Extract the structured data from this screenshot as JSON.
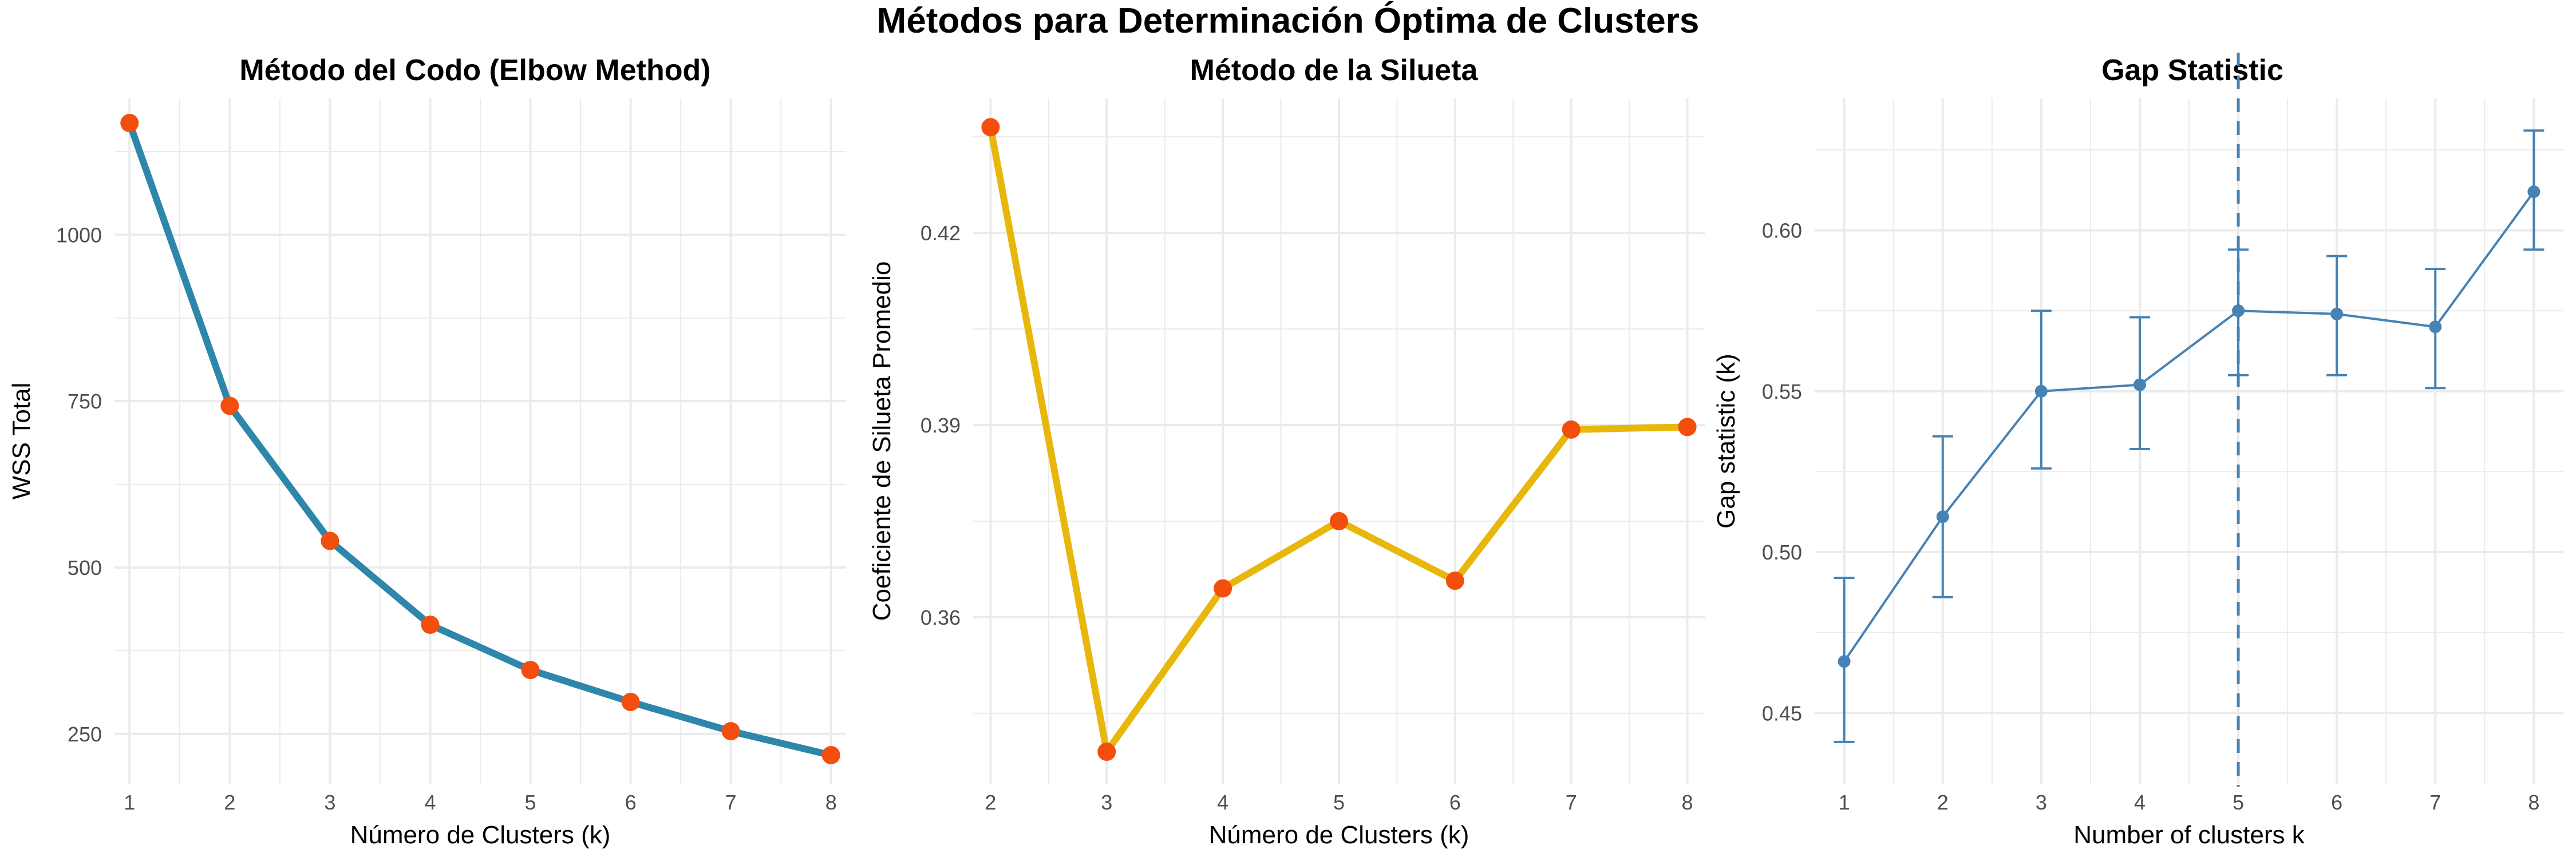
{
  "title": "Métodos para Determinación Óptima de Clusters",
  "colors": {
    "elbow_line": "#2E86AB",
    "point": "#F24E0E",
    "silhouette_line": "#E8B70C",
    "gap": "#4682B4",
    "grid": "#EBEBEB",
    "text": "#4D4D4D"
  },
  "chart_data": [
    {
      "type": "line",
      "title": "Método del Codo (Elbow Method)",
      "xlabel": "Número de Clusters (k)",
      "ylabel": "WSS Total",
      "x": [
        1,
        2,
        3,
        4,
        5,
        6,
        7,
        8
      ],
      "series": [
        {
          "values": [
            1168,
            743,
            540,
            414,
            346,
            298,
            254,
            218
          ]
        }
      ],
      "xlim": [
        0.85,
        8.15
      ],
      "ylim": [
        175,
        1205
      ],
      "xticks": [
        1,
        2,
        3,
        4,
        5,
        6,
        7,
        8
      ],
      "yticks": [
        250,
        500,
        750,
        1000
      ],
      "yticklabels": [
        "250",
        "500",
        "750",
        "1000"
      ],
      "grid": true,
      "legend": "none"
    },
    {
      "type": "line",
      "title": "Método de la Silueta",
      "xlabel": "Número de Clusters (k)",
      "ylabel": "Coeficiente de Silueta Promedio",
      "x": [
        2,
        3,
        4,
        5,
        6,
        7,
        8
      ],
      "series": [
        {
          "values": [
            0.4365,
            0.339,
            0.3645,
            0.375,
            0.3657,
            0.3893,
            0.3897
          ]
        }
      ],
      "xlim": [
        1.85,
        8.15
      ],
      "ylim": [
        0.334,
        0.441
      ],
      "xticks": [
        2,
        3,
        4,
        5,
        6,
        7,
        8
      ],
      "yticks": [
        0.36,
        0.39,
        0.42
      ],
      "yticklabels": [
        "0.36",
        "0.39",
        "0.42"
      ],
      "grid": true,
      "legend": "none"
    },
    {
      "type": "line",
      "title": "Gap Statistic",
      "xlabel": "Number of clusters k",
      "ylabel": "Gap statistic (k)",
      "x": [
        1,
        2,
        3,
        4,
        5,
        6,
        7,
        8
      ],
      "series": [
        {
          "values": [
            0.466,
            0.511,
            0.55,
            0.552,
            0.575,
            0.574,
            0.57,
            0.612
          ],
          "lower": [
            0.441,
            0.486,
            0.526,
            0.532,
            0.555,
            0.555,
            0.551,
            0.594
          ],
          "upper": [
            0.492,
            0.536,
            0.575,
            0.573,
            0.594,
            0.592,
            0.588,
            0.631
          ]
        }
      ],
      "optimal_k": 5,
      "xlim": [
        0.7,
        8.3
      ],
      "ylim": [
        0.428,
        0.641
      ],
      "xticks": [
        1,
        2,
        3,
        4,
        5,
        6,
        7,
        8
      ],
      "yticks": [
        0.45,
        0.5,
        0.55,
        0.6
      ],
      "yticklabels": [
        "0.45",
        "0.50",
        "0.55",
        "0.60"
      ],
      "grid": true,
      "legend": "none"
    }
  ]
}
